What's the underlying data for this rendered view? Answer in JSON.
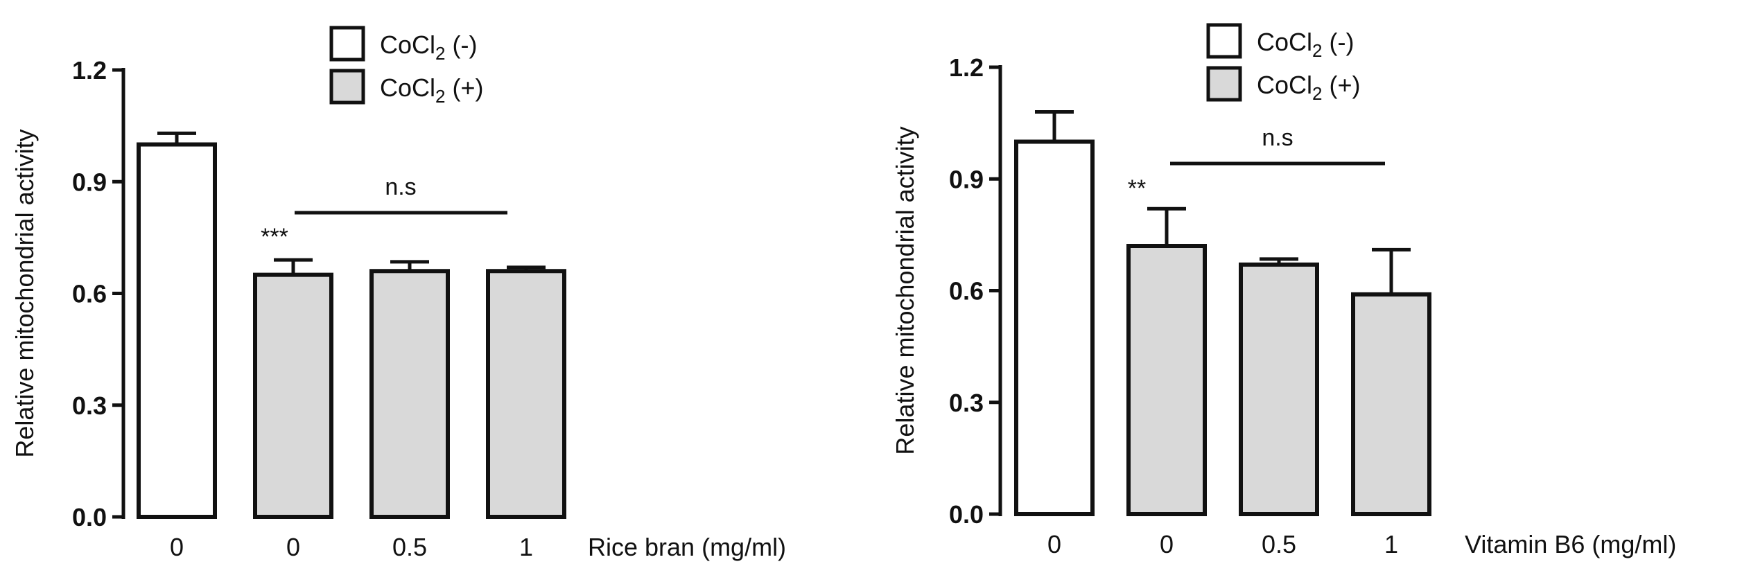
{
  "chart_data": [
    {
      "type": "bar",
      "ylabel": "Relative mitochondrial activity",
      "xlabel": "Rice bran (mg/ml)",
      "ylim": [
        0,
        1.2
      ],
      "yticks": [
        "0.0",
        "0.3",
        "0.6",
        "0.9",
        "1.2"
      ],
      "categories": [
        "0",
        "0",
        "0.5",
        "1"
      ],
      "values": [
        1.0,
        0.65,
        0.66,
        0.66
      ],
      "errors": [
        0.03,
        0.04,
        0.025,
        0.01
      ],
      "groups": [
        "CoCl2 (-)",
        "CoCl2 (+)",
        "CoCl2 (+)",
        "CoCl2 (+)"
      ],
      "legend": [
        {
          "name": "CoCl2 (-)",
          "base": "CoCl",
          "sub": "2",
          "suffix": " (-)",
          "fill": "#ffffff"
        },
        {
          "name": "CoCl2 (+)",
          "base": "CoCl",
          "sub": "2",
          "suffix": " (+)",
          "fill": "#d9d9d9"
        }
      ],
      "annotations": {
        "significance": "***",
        "ns": "n.s"
      },
      "grid": false,
      "legend_position": "top"
    },
    {
      "type": "bar",
      "ylabel": "Relative mitochondrial activity",
      "xlabel": "Vitamin B6 (mg/ml)",
      "ylim": [
        0,
        1.2
      ],
      "yticks": [
        "0.0",
        "0.3",
        "0.6",
        "0.9",
        "1.2"
      ],
      "categories": [
        "0",
        "0",
        "0.5",
        "1"
      ],
      "values": [
        1.0,
        0.72,
        0.67,
        0.59
      ],
      "errors": [
        0.08,
        0.1,
        0.015,
        0.12
      ],
      "groups": [
        "CoCl2 (-)",
        "CoCl2 (+)",
        "CoCl2 (+)",
        "CoCl2 (+)"
      ],
      "legend": [
        {
          "name": "CoCl2 (-)",
          "base": "CoCl",
          "sub": "2",
          "suffix": " (-)",
          "fill": "#ffffff"
        },
        {
          "name": "CoCl2 (+)",
          "base": "CoCl",
          "sub": "2",
          "suffix": " (+)",
          "fill": "#d9d9d9"
        }
      ],
      "annotations": {
        "significance": "**",
        "ns": "n.s"
      },
      "grid": false,
      "legend_position": "top"
    }
  ]
}
